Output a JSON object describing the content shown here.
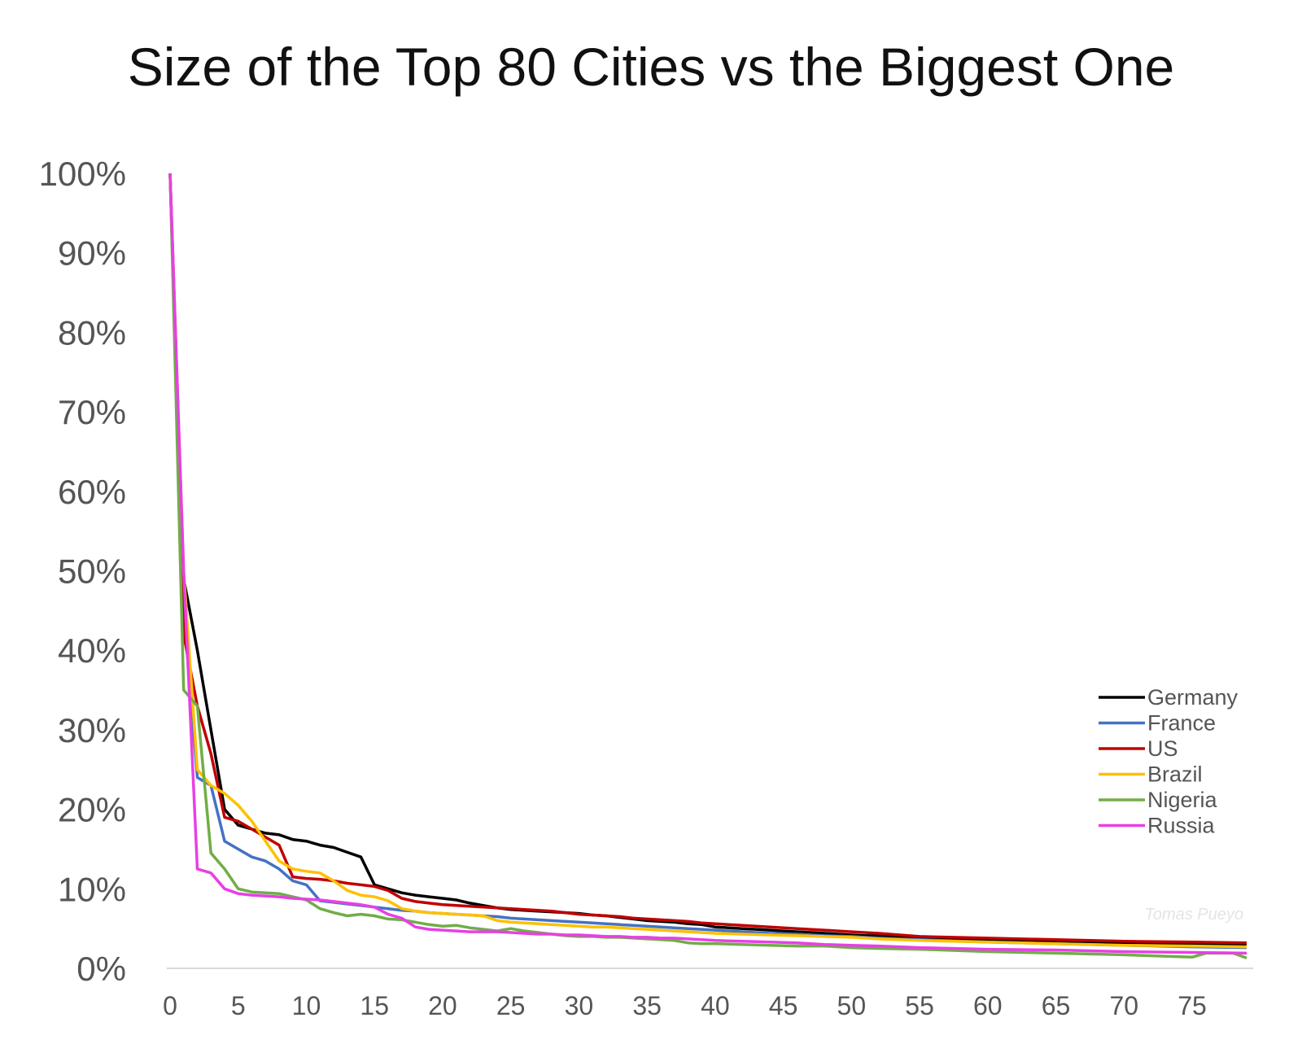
{
  "chart_data": {
    "type": "line",
    "title": "Size of the Top 80 Cities vs the Biggest One",
    "xlabel": "",
    "ylabel": "",
    "xlim": [
      0,
      79
    ],
    "ylim": [
      0,
      100
    ],
    "x_ticks": [
      0,
      5,
      10,
      15,
      20,
      25,
      30,
      35,
      40,
      45,
      50,
      55,
      60,
      65,
      70,
      75
    ],
    "y_ticks": [
      0,
      10,
      20,
      30,
      40,
      50,
      60,
      70,
      80,
      90,
      100
    ],
    "y_tick_suffix": "%",
    "grid": false,
    "legend_position": "right",
    "watermark": "Tomas Pueyo",
    "series": [
      {
        "name": "Germany",
        "color": "#000000",
        "points": [
          [
            0,
            100
          ],
          [
            1,
            49
          ],
          [
            2,
            40
          ],
          [
            3,
            30
          ],
          [
            4,
            20
          ],
          [
            5,
            18
          ],
          [
            6,
            17.5
          ],
          [
            7,
            17
          ],
          [
            8,
            16.8
          ],
          [
            9,
            16.2
          ],
          [
            10,
            16
          ],
          [
            11,
            15.5
          ],
          [
            12,
            15.2
          ],
          [
            13,
            14.6
          ],
          [
            14,
            14
          ],
          [
            15,
            10.5
          ],
          [
            16,
            10
          ],
          [
            17,
            9.5
          ],
          [
            18,
            9.2
          ],
          [
            19,
            9
          ],
          [
            20,
            8.8
          ],
          [
            21,
            8.6
          ],
          [
            22,
            8.2
          ],
          [
            23,
            7.9
          ],
          [
            24,
            7.6
          ],
          [
            25,
            7.4
          ],
          [
            26,
            7.3
          ],
          [
            27,
            7.2
          ],
          [
            28,
            7.1
          ],
          [
            29,
            7
          ],
          [
            30,
            6.9
          ],
          [
            31,
            6.7
          ],
          [
            32,
            6.6
          ],
          [
            33,
            6.4
          ],
          [
            34,
            6.2
          ],
          [
            35,
            6
          ],
          [
            36,
            5.9
          ],
          [
            37,
            5.8
          ],
          [
            38,
            5.6
          ],
          [
            39,
            5.5
          ],
          [
            40,
            5.2
          ],
          [
            41,
            5.1
          ],
          [
            42,
            5
          ],
          [
            43,
            4.9
          ],
          [
            44,
            4.8
          ],
          [
            45,
            4.7
          ],
          [
            46,
            4.6
          ],
          [
            47,
            4.5
          ],
          [
            48,
            4.4
          ],
          [
            49,
            4.3
          ],
          [
            50,
            4.2
          ],
          [
            51,
            4.1
          ],
          [
            52,
            4.1
          ],
          [
            53,
            4
          ],
          [
            54,
            3.9
          ],
          [
            55,
            3.8
          ],
          [
            60,
            3.5
          ],
          [
            65,
            3.3
          ],
          [
            70,
            3.1
          ],
          [
            75,
            3
          ],
          [
            79,
            3
          ]
        ]
      },
      {
        "name": "France",
        "color": "#4472c4",
        "points": [
          [
            0,
            100
          ],
          [
            1,
            45
          ],
          [
            2,
            24
          ],
          [
            3,
            23
          ],
          [
            4,
            16
          ],
          [
            5,
            15
          ],
          [
            6,
            14
          ],
          [
            7,
            13.5
          ],
          [
            8,
            12.5
          ],
          [
            9,
            11
          ],
          [
            10,
            10.5
          ],
          [
            11,
            8.5
          ],
          [
            12,
            8.3
          ],
          [
            13,
            8.1
          ],
          [
            14,
            7.9
          ],
          [
            15,
            7.7
          ],
          [
            16,
            7.5
          ],
          [
            17,
            7.3
          ],
          [
            18,
            7.2
          ],
          [
            19,
            7
          ],
          [
            20,
            6.9
          ],
          [
            21,
            6.8
          ],
          [
            22,
            6.7
          ],
          [
            23,
            6.6
          ],
          [
            24,
            6.5
          ],
          [
            25,
            6.3
          ],
          [
            26,
            6.2
          ],
          [
            27,
            6.1
          ],
          [
            28,
            6
          ],
          [
            29,
            5.9
          ],
          [
            30,
            5.8
          ],
          [
            31,
            5.7
          ],
          [
            32,
            5.6
          ],
          [
            33,
            5.5
          ],
          [
            34,
            5.4
          ],
          [
            35,
            5.3
          ],
          [
            36,
            5.2
          ],
          [
            37,
            5.1
          ],
          [
            38,
            5
          ],
          [
            39,
            4.9
          ],
          [
            40,
            4.8
          ],
          [
            42,
            4.6
          ],
          [
            44,
            4.4
          ],
          [
            46,
            4.3
          ],
          [
            48,
            4.1
          ],
          [
            50,
            4
          ],
          [
            52,
            3.8
          ],
          [
            55,
            3.6
          ],
          [
            60,
            3.3
          ],
          [
            65,
            3.1
          ],
          [
            70,
            2.9
          ],
          [
            75,
            2.7
          ],
          [
            79,
            2.6
          ]
        ]
      },
      {
        "name": "US",
        "color": "#c00000",
        "points": [
          [
            0,
            100
          ],
          [
            1,
            42
          ],
          [
            2,
            33
          ],
          [
            3,
            27
          ],
          [
            4,
            19
          ],
          [
            5,
            18.5
          ],
          [
            6,
            17.5
          ],
          [
            7,
            16.5
          ],
          [
            8,
            15.5
          ],
          [
            9,
            11.5
          ],
          [
            10,
            11.3
          ],
          [
            11,
            11.2
          ],
          [
            12,
            11
          ],
          [
            13,
            10.7
          ],
          [
            14,
            10.5
          ],
          [
            15,
            10.3
          ],
          [
            16,
            9.8
          ],
          [
            17,
            8.8
          ],
          [
            18,
            8.4
          ],
          [
            19,
            8.2
          ],
          [
            20,
            8
          ],
          [
            21,
            7.9
          ],
          [
            22,
            7.8
          ],
          [
            23,
            7.7
          ],
          [
            24,
            7.6
          ],
          [
            25,
            7.5
          ],
          [
            26,
            7.4
          ],
          [
            27,
            7.3
          ],
          [
            28,
            7.2
          ],
          [
            29,
            7
          ],
          [
            30,
            6.8
          ],
          [
            31,
            6.7
          ],
          [
            32,
            6.6
          ],
          [
            33,
            6.5
          ],
          [
            34,
            6.3
          ],
          [
            35,
            6.2
          ],
          [
            36,
            6.1
          ],
          [
            37,
            6
          ],
          [
            38,
            5.9
          ],
          [
            39,
            5.7
          ],
          [
            40,
            5.6
          ],
          [
            42,
            5.4
          ],
          [
            44,
            5.2
          ],
          [
            46,
            5
          ],
          [
            48,
            4.8
          ],
          [
            50,
            4.6
          ],
          [
            52,
            4.4
          ],
          [
            55,
            4
          ],
          [
            60,
            3.8
          ],
          [
            65,
            3.6
          ],
          [
            70,
            3.4
          ],
          [
            75,
            3.3
          ],
          [
            79,
            3.2
          ]
        ]
      },
      {
        "name": "Brazil",
        "color": "#ffc000",
        "points": [
          [
            0,
            100
          ],
          [
            1,
            50
          ],
          [
            2,
            25
          ],
          [
            3,
            23
          ],
          [
            4,
            22
          ],
          [
            5,
            20.5
          ],
          [
            6,
            18.5
          ],
          [
            7,
            16
          ],
          [
            8,
            13.5
          ],
          [
            9,
            12.5
          ],
          [
            10,
            12.2
          ],
          [
            11,
            12
          ],
          [
            12,
            11
          ],
          [
            13,
            9.8
          ],
          [
            14,
            9.2
          ],
          [
            15,
            9
          ],
          [
            16,
            8.5
          ],
          [
            17,
            7.5
          ],
          [
            18,
            7.2
          ],
          [
            19,
            7
          ],
          [
            20,
            6.9
          ],
          [
            21,
            6.8
          ],
          [
            22,
            6.7
          ],
          [
            23,
            6.6
          ],
          [
            24,
            6
          ],
          [
            25,
            5.8
          ],
          [
            26,
            5.7
          ],
          [
            27,
            5.6
          ],
          [
            28,
            5.5
          ],
          [
            29,
            5.4
          ],
          [
            30,
            5.3
          ],
          [
            31,
            5.2
          ],
          [
            32,
            5.2
          ],
          [
            33,
            5.1
          ],
          [
            34,
            5
          ],
          [
            35,
            4.9
          ],
          [
            36,
            4.8
          ],
          [
            37,
            4.7
          ],
          [
            38,
            4.6
          ],
          [
            39,
            4.5
          ],
          [
            40,
            4.4
          ],
          [
            42,
            4.3
          ],
          [
            44,
            4.2
          ],
          [
            46,
            4.1
          ],
          [
            48,
            4
          ],
          [
            50,
            3.9
          ],
          [
            52,
            3.7
          ],
          [
            55,
            3.5
          ],
          [
            60,
            3.3
          ],
          [
            65,
            3.1
          ],
          [
            70,
            2.9
          ],
          [
            75,
            2.8
          ],
          [
            79,
            2.7
          ]
        ]
      },
      {
        "name": "Nigeria",
        "color": "#70ad47",
        "points": [
          [
            0,
            100
          ],
          [
            1,
            35
          ],
          [
            2,
            33
          ],
          [
            3,
            14.5
          ],
          [
            4,
            12.5
          ],
          [
            5,
            10
          ],
          [
            6,
            9.6
          ],
          [
            7,
            9.5
          ],
          [
            8,
            9.4
          ],
          [
            9,
            9
          ],
          [
            10,
            8.6
          ],
          [
            11,
            7.5
          ],
          [
            12,
            7
          ],
          [
            13,
            6.6
          ],
          [
            14,
            6.8
          ],
          [
            15,
            6.6
          ],
          [
            16,
            6.2
          ],
          [
            17,
            6.1
          ],
          [
            18,
            5.8
          ],
          [
            19,
            5.5
          ],
          [
            20,
            5.3
          ],
          [
            21,
            5.4
          ],
          [
            22,
            5.1
          ],
          [
            23,
            4.9
          ],
          [
            24,
            4.7
          ],
          [
            25,
            5
          ],
          [
            26,
            4.7
          ],
          [
            27,
            4.5
          ],
          [
            28,
            4.3
          ],
          [
            29,
            4.1
          ],
          [
            30,
            4
          ],
          [
            31,
            4
          ],
          [
            32,
            3.9
          ],
          [
            33,
            3.9
          ],
          [
            34,
            3.8
          ],
          [
            35,
            3.7
          ],
          [
            36,
            3.6
          ],
          [
            37,
            3.5
          ],
          [
            38,
            3.2
          ],
          [
            39,
            3.1
          ],
          [
            40,
            3.1
          ],
          [
            42,
            3
          ],
          [
            44,
            2.9
          ],
          [
            46,
            2.8
          ],
          [
            48,
            2.8
          ],
          [
            50,
            2.6
          ],
          [
            52,
            2.5
          ],
          [
            55,
            2.4
          ],
          [
            60,
            2.1
          ],
          [
            65,
            1.9
          ],
          [
            70,
            1.7
          ],
          [
            75,
            1.4
          ],
          [
            76,
            1.9
          ],
          [
            78,
            1.9
          ],
          [
            79,
            1.3
          ]
        ]
      },
      {
        "name": "Russia",
        "color": "#e83fe6",
        "points": [
          [
            0,
            100
          ],
          [
            1,
            50
          ],
          [
            2,
            12.5
          ],
          [
            3,
            12
          ],
          [
            4,
            10
          ],
          [
            5,
            9.4
          ],
          [
            6,
            9.2
          ],
          [
            7,
            9.1
          ],
          [
            8,
            9
          ],
          [
            9,
            8.8
          ],
          [
            10,
            8.7
          ],
          [
            11,
            8.6
          ],
          [
            12,
            8.4
          ],
          [
            13,
            8.2
          ],
          [
            14,
            8
          ],
          [
            15,
            7.7
          ],
          [
            16,
            6.8
          ],
          [
            17,
            6.3
          ],
          [
            18,
            5.2
          ],
          [
            19,
            4.9
          ],
          [
            20,
            4.8
          ],
          [
            21,
            4.7
          ],
          [
            22,
            4.6
          ],
          [
            23,
            4.6
          ],
          [
            24,
            4.6
          ],
          [
            25,
            4.5
          ],
          [
            26,
            4.4
          ],
          [
            27,
            4.3
          ],
          [
            28,
            4.3
          ],
          [
            29,
            4.2
          ],
          [
            30,
            4.2
          ],
          [
            31,
            4.1
          ],
          [
            32,
            4
          ],
          [
            33,
            4
          ],
          [
            34,
            3.9
          ],
          [
            35,
            3.9
          ],
          [
            36,
            3.8
          ],
          [
            37,
            3.8
          ],
          [
            38,
            3.7
          ],
          [
            39,
            3.6
          ],
          [
            40,
            3.5
          ],
          [
            42,
            3.4
          ],
          [
            44,
            3.3
          ],
          [
            46,
            3.2
          ],
          [
            48,
            3
          ],
          [
            50,
            2.9
          ],
          [
            52,
            2.8
          ],
          [
            55,
            2.6
          ],
          [
            60,
            2.4
          ],
          [
            65,
            2.3
          ],
          [
            70,
            2.1
          ],
          [
            75,
            2
          ],
          [
            79,
            1.9
          ]
        ]
      }
    ]
  }
}
